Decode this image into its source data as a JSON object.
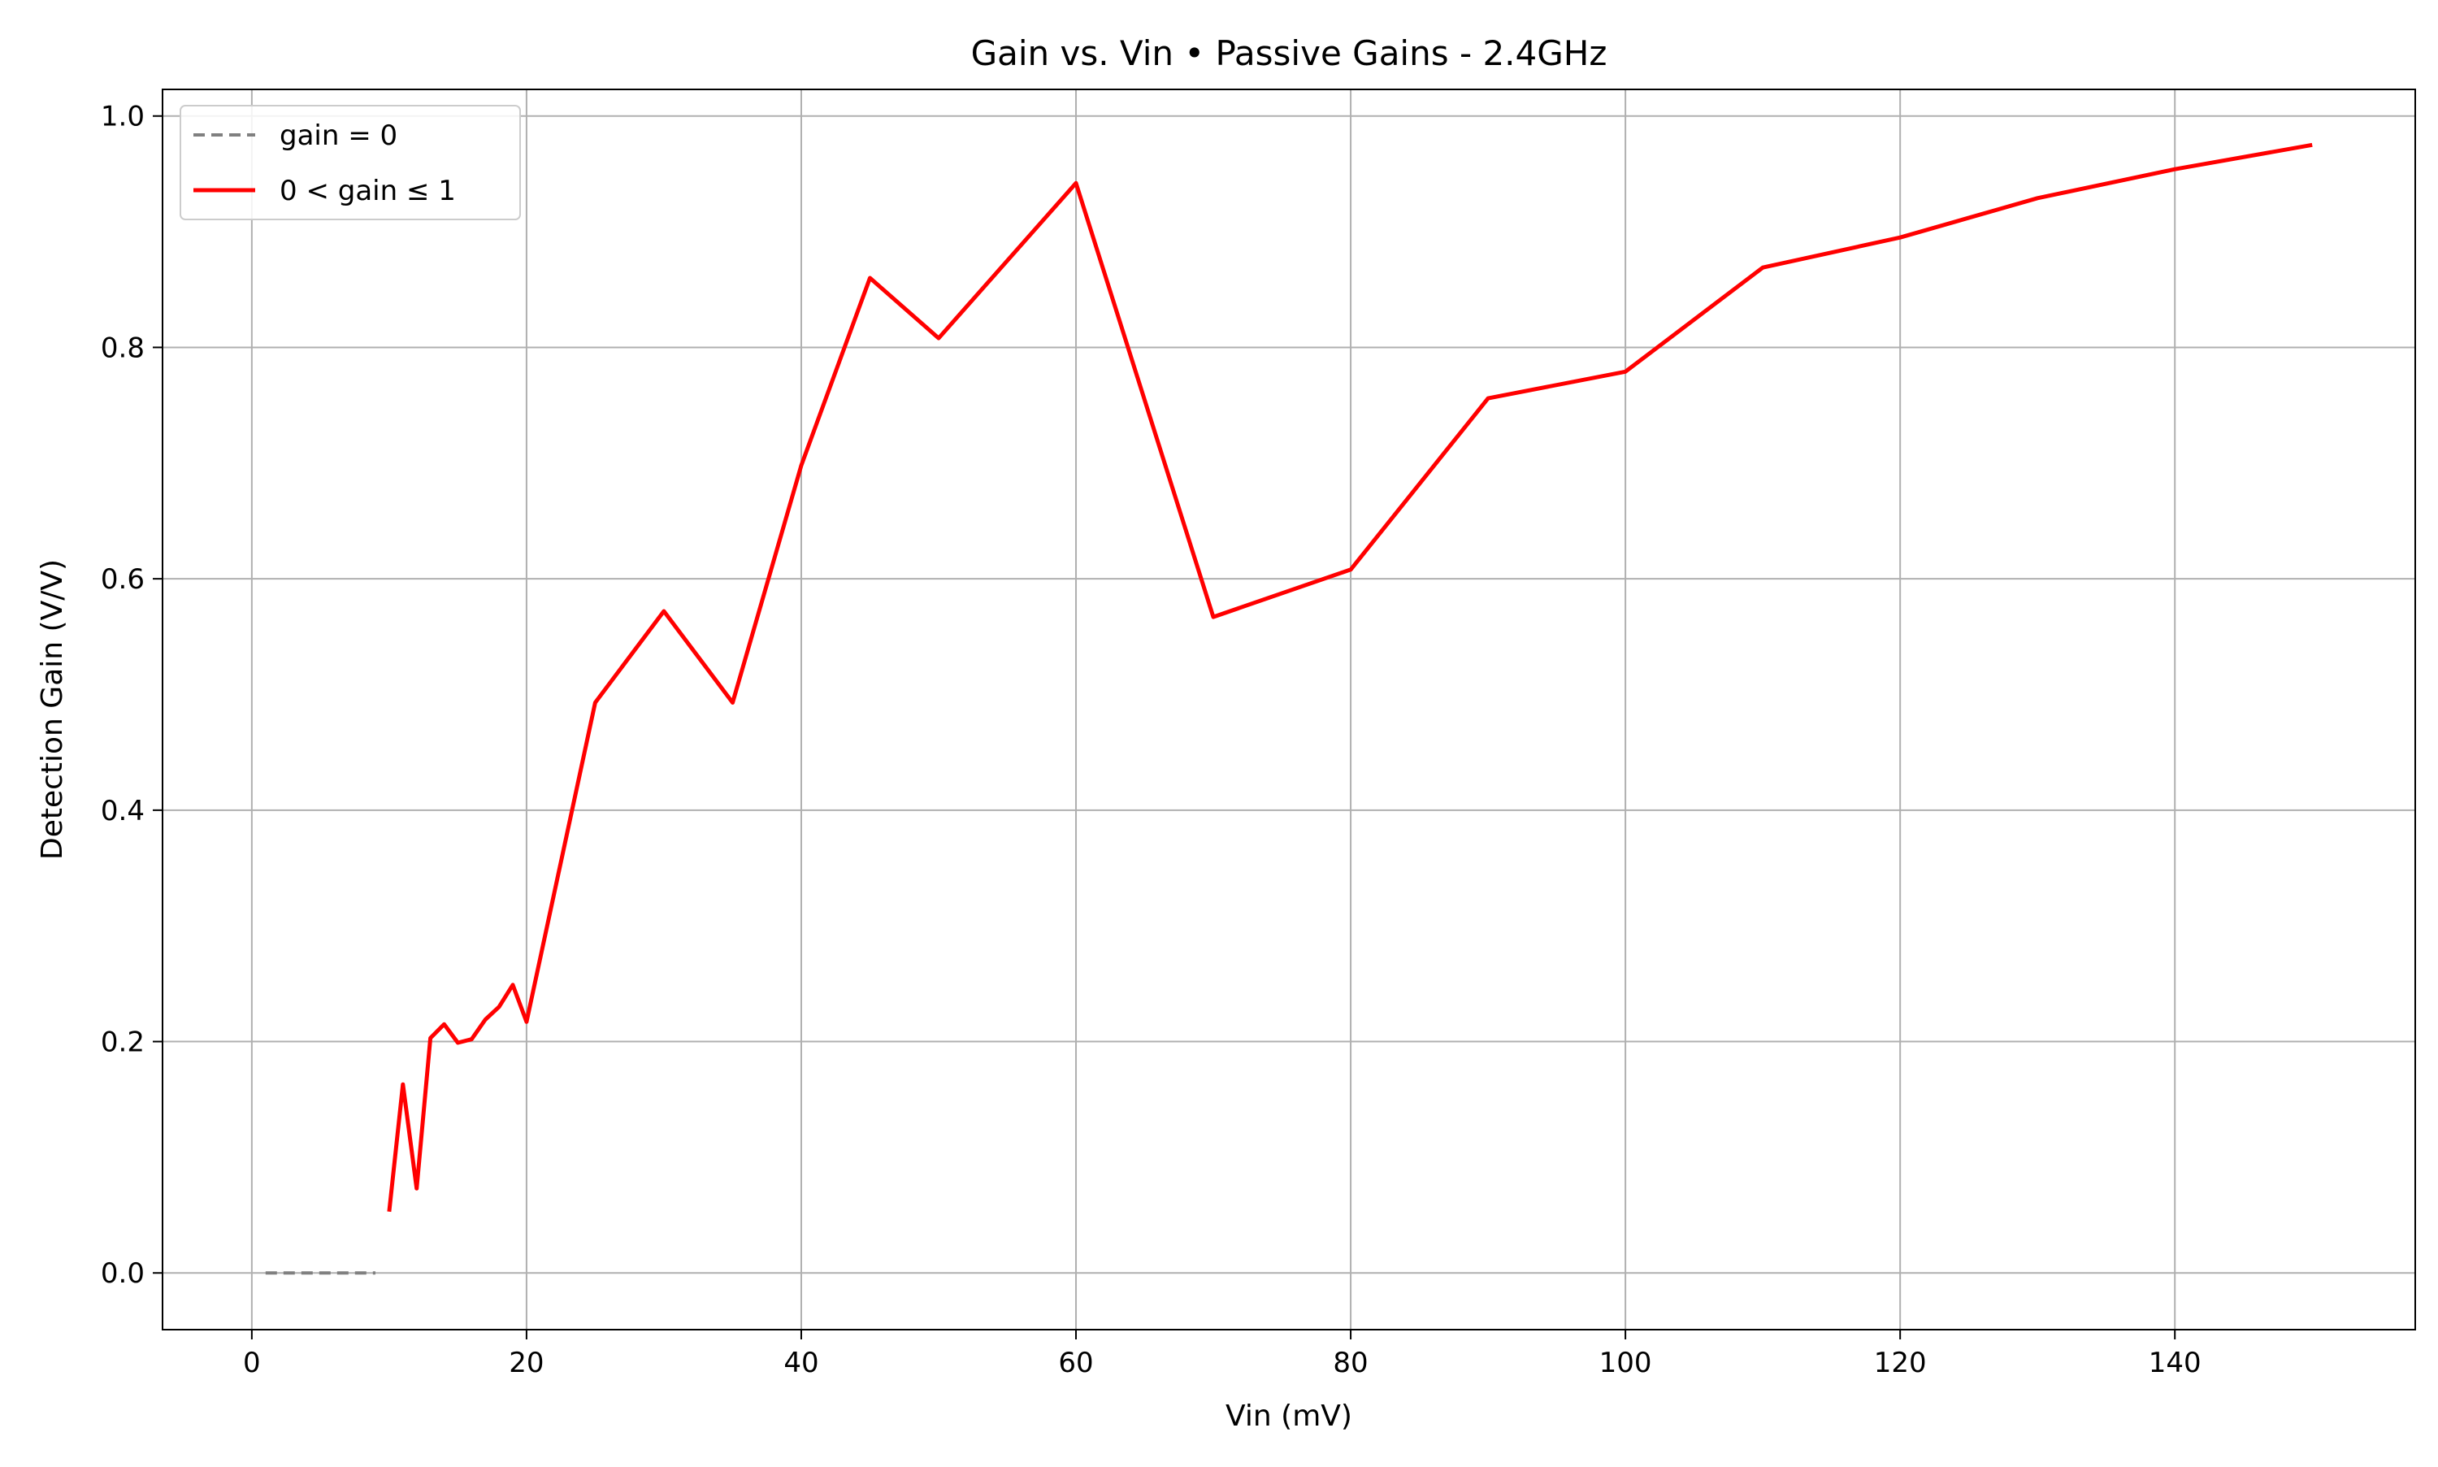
{
  "chart_data": {
    "type": "line",
    "title": "Gain vs. Vin • Passive Gains - 2.4GHz",
    "xlabel": "Vin (mV)",
    "ylabel": "Detection Gain (V/V)",
    "xlim": [
      -6.5,
      157.5
    ],
    "ylim": [
      -0.049,
      1.023
    ],
    "xticks": [
      0,
      20,
      40,
      60,
      80,
      100,
      120,
      140
    ],
    "yticks": [
      0.0,
      0.2,
      0.4,
      0.6,
      0.8,
      1.0
    ],
    "xtick_labels": [
      "0",
      "20",
      "40",
      "60",
      "80",
      "100",
      "120",
      "140"
    ],
    "ytick_labels": [
      "0.0",
      "0.2",
      "0.4",
      "0.6",
      "0.8",
      "1.0"
    ],
    "grid": true,
    "legend_position": "top-left",
    "series": [
      {
        "name": "gain = 0",
        "color": "#808080",
        "style": "dashed",
        "x": [
          1,
          2,
          3,
          4,
          5,
          6,
          7,
          8,
          9
        ],
        "y": [
          0,
          0,
          0,
          0,
          0,
          0,
          0,
          0,
          0
        ]
      },
      {
        "name": "0 < gain ≤ 1",
        "color": "#ff0000",
        "style": "solid",
        "x": [
          10,
          11,
          12,
          13,
          14,
          15,
          16,
          17,
          18,
          19,
          20,
          25,
          30,
          35,
          40,
          45,
          50,
          60,
          70,
          80,
          90,
          100,
          110,
          120,
          130,
          140,
          150
        ],
        "y": [
          0.053,
          0.163,
          0.073,
          0.203,
          0.215,
          0.199,
          0.202,
          0.219,
          0.23,
          0.249,
          0.217,
          0.493,
          0.572,
          0.493,
          0.698,
          0.86,
          0.808,
          0.942,
          0.567,
          0.608,
          0.756,
          0.779,
          0.869,
          0.895,
          0.929,
          0.954,
          0.975
        ]
      }
    ]
  }
}
